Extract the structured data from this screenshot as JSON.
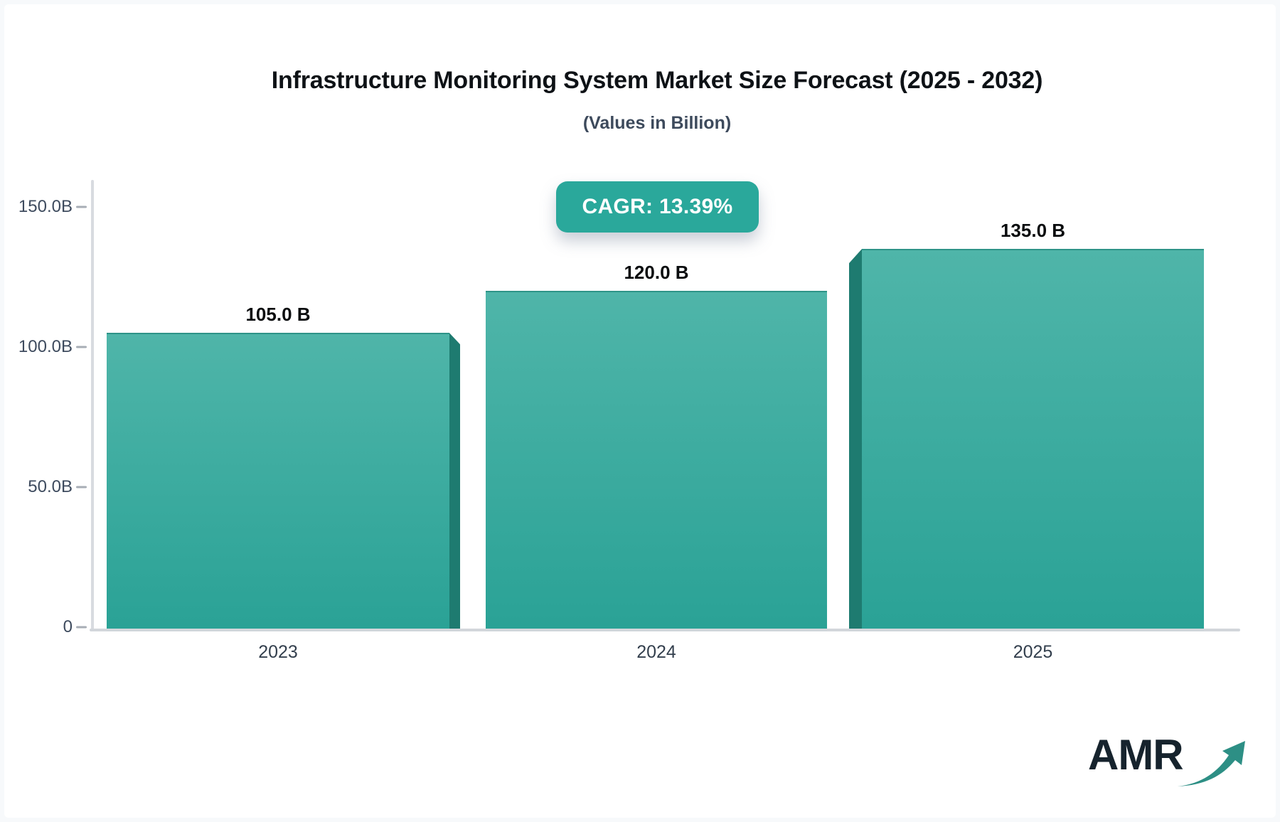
{
  "header": {
    "title": "Infrastructure Monitoring System Market Size Forecast (2025 - 2032)",
    "subtitle": "(Values in Billion)",
    "cagr_label": "CAGR: 13.39%"
  },
  "logo": {
    "text": "AMR",
    "text_color": "#16232d",
    "arrow_color": "#2d8f85"
  },
  "colors": {
    "badge_bg": "#2aa89b",
    "bar_gradient_top": "#4fb5a9",
    "bar_gradient_bottom": "#2aa296",
    "bar_top_edge": "#2e9488",
    "bar_side": "#1e7b70",
    "axis_line": "#d8dbe0",
    "page_bg": "#f7f9fb"
  },
  "chart_data": {
    "type": "bar",
    "title": "Infrastructure Monitoring System Market Size Forecast (2025 - 2032)",
    "subtitle": "(Values in Billion)",
    "annotation": "CAGR: 13.39%",
    "unit": "Billion",
    "categories": [
      "2023",
      "2024",
      "2025"
    ],
    "values": [
      105.0,
      120.0,
      135.0
    ],
    "bar_labels": [
      "105.0 B",
      "120.0 B",
      "135.0 B"
    ],
    "ylim": [
      0,
      150
    ],
    "yticks": [
      {
        "value": 150,
        "label": "150.0B"
      },
      {
        "value": 100,
        "label": "100.0B"
      },
      {
        "value": 50,
        "label": "50.0B"
      },
      {
        "value": 0,
        "label": "0"
      }
    ],
    "xlabel": "",
    "ylabel": "",
    "grid": false,
    "legend": false,
    "style": "pseudo-3d teal bars, value labels above bars"
  }
}
